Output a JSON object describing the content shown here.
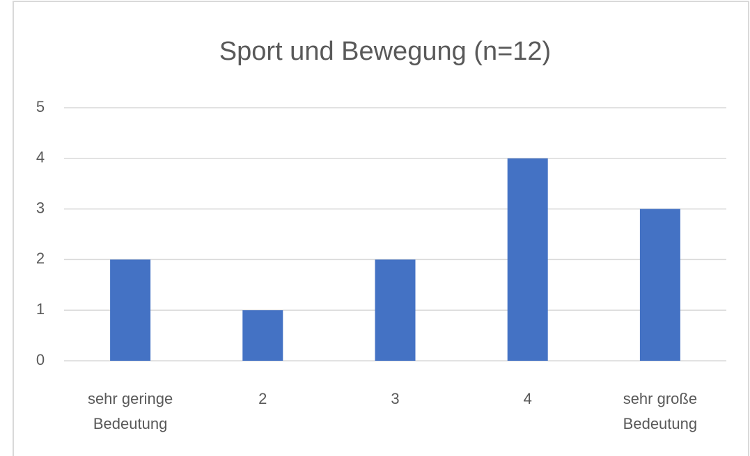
{
  "chart_data": {
    "type": "bar",
    "title": "Sport und Bewegung (n=12)",
    "categories": [
      "sehr geringe Bedeutung",
      "2",
      "3",
      "4",
      "sehr große Bedeutung"
    ],
    "values": [
      2,
      1,
      2,
      4,
      3
    ],
    "color": "#4472c4",
    "ylim": [
      0,
      5
    ],
    "yticks": [
      0,
      1,
      2,
      3,
      4,
      5
    ],
    "grid": true
  }
}
